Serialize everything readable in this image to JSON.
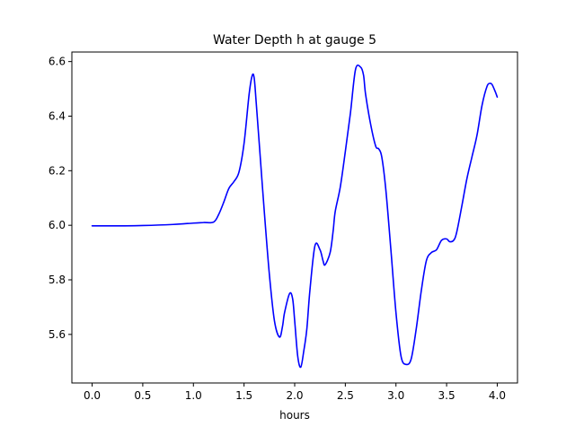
{
  "chart_data": {
    "type": "line",
    "title": "Water Depth h at gauge 5",
    "xlabel": "hours",
    "ylabel": "",
    "xlim": [
      -0.2,
      4.2
    ],
    "ylim": [
      5.422,
      6.635
    ],
    "x_ticks": [
      0.0,
      0.5,
      1.0,
      1.5,
      2.0,
      2.5,
      3.0,
      3.5,
      4.0
    ],
    "x_tick_labels": [
      "0.0",
      "0.5",
      "1.0",
      "1.5",
      "2.0",
      "2.5",
      "3.0",
      "3.5",
      "4.0"
    ],
    "y_ticks": [
      5.6,
      5.8,
      6.0,
      6.2,
      6.4,
      6.6
    ],
    "y_tick_labels": [
      "5.6",
      "5.8",
      "6.0",
      "6.2",
      "6.4",
      "6.6"
    ],
    "grid": false,
    "colors": {
      "line": "#0000ff",
      "axes": "#000000",
      "background": "#ffffff"
    },
    "series": [
      {
        "x": [
          0.0,
          0.3,
          0.5,
          0.8,
          1.0,
          1.1,
          1.2,
          1.25,
          1.3,
          1.35,
          1.4,
          1.45,
          1.5,
          1.55,
          1.58,
          1.6,
          1.62,
          1.65,
          1.7,
          1.75,
          1.8,
          1.85,
          1.88,
          1.9,
          1.95,
          1.98,
          2.0,
          2.03,
          2.06,
          2.09,
          2.12,
          2.15,
          2.2,
          2.25,
          2.28,
          2.3,
          2.35,
          2.38,
          2.4,
          2.45,
          2.5,
          2.55,
          2.6,
          2.65,
          2.68,
          2.7,
          2.75,
          2.8,
          2.83,
          2.86,
          2.9,
          2.95,
          3.0,
          3.05,
          3.1,
          3.15,
          3.2,
          3.25,
          3.3,
          3.35,
          3.4,
          3.45,
          3.5,
          3.53,
          3.57,
          3.6,
          3.65,
          3.7,
          3.75,
          3.8,
          3.85,
          3.9,
          3.93,
          3.95,
          3.98,
          4.0
        ],
        "y": [
          5.998,
          5.998,
          5.999,
          6.003,
          6.008,
          6.01,
          6.012,
          6.04,
          6.085,
          6.135,
          6.16,
          6.195,
          6.3,
          6.48,
          6.548,
          6.54,
          6.45,
          6.3,
          6.05,
          5.82,
          5.65,
          5.59,
          5.63,
          5.68,
          5.75,
          5.73,
          5.65,
          5.52,
          5.48,
          5.54,
          5.62,
          5.76,
          5.925,
          5.91,
          5.87,
          5.855,
          5.9,
          5.98,
          6.05,
          6.14,
          6.27,
          6.41,
          6.57,
          6.58,
          6.55,
          6.48,
          6.37,
          6.29,
          6.28,
          6.25,
          6.13,
          5.91,
          5.68,
          5.52,
          5.49,
          5.51,
          5.62,
          5.76,
          5.87,
          5.9,
          5.91,
          5.945,
          5.95,
          5.94,
          5.945,
          5.975,
          6.07,
          6.17,
          6.25,
          6.33,
          6.44,
          6.51,
          6.52,
          6.515,
          6.49,
          6.47
        ]
      }
    ]
  }
}
